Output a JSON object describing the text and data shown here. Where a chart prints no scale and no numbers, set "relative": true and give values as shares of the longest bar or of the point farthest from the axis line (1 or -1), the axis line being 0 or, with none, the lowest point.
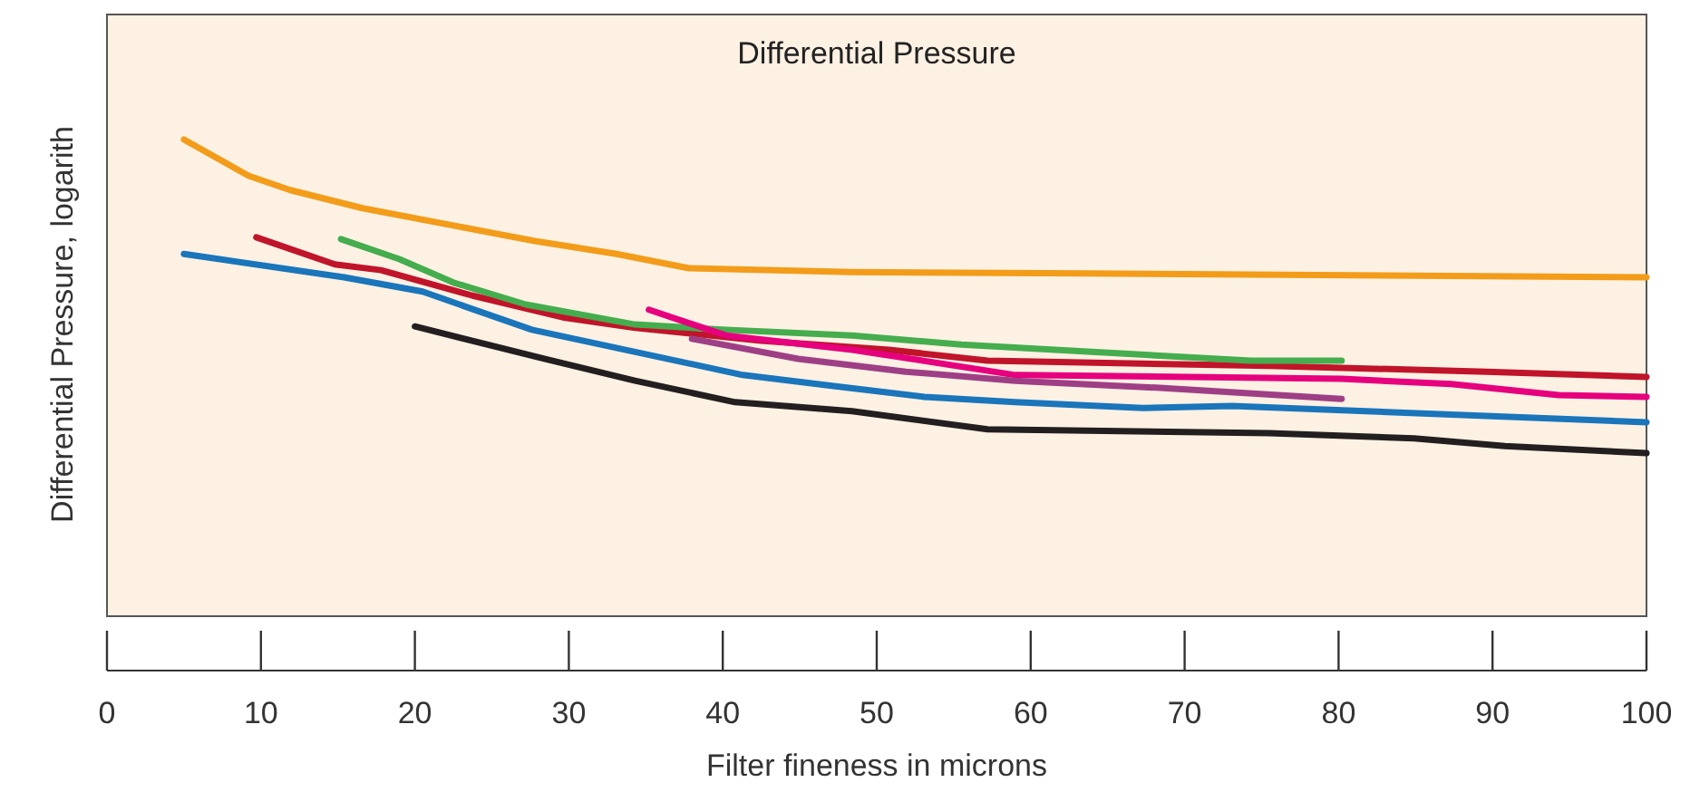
{
  "chart_data": {
    "type": "line",
    "title": "Differential Pressure",
    "xlabel": "Filter fineness in microns",
    "ylabel": "Differential Pressure, logarith",
    "relative": true,
    "xlim": [
      0,
      100
    ],
    "xticks": [
      0,
      10,
      20,
      30,
      40,
      50,
      60,
      70,
      80,
      90,
      100
    ],
    "grid": false,
    "marker": "none",
    "line_style": "solid",
    "series": [
      {
        "color": "#f39c1a",
        "x": [
          5,
          9.2,
          11.9,
          16.6,
          27.8,
          33.1,
          37.8,
          48.4,
          63.7,
          100
        ],
        "values": [
          1,
          0.924,
          0.894,
          0.856,
          0.787,
          0.76,
          0.73,
          0.722,
          0.719,
          0.711
        ]
      },
      {
        "color": "#1a75bb",
        "x": [
          5,
          15.4,
          20.5,
          27.6,
          41.3,
          47.2,
          53.1,
          59,
          67.3,
          73.1,
          100
        ],
        "values": [
          0.76,
          0.711,
          0.681,
          0.601,
          0.506,
          0.483,
          0.46,
          0.449,
          0.437,
          0.441,
          0.407
        ]
      },
      {
        "color": "#c0142a",
        "x": [
          9.7,
          14.8,
          17.8,
          23.7,
          29.6,
          34.3,
          42.5,
          50.8,
          57.2,
          75.5,
          89.6,
          100
        ],
        "values": [
          0.795,
          0.738,
          0.726,
          0.673,
          0.627,
          0.605,
          0.578,
          0.559,
          0.536,
          0.525,
          0.513,
          0.502
        ]
      },
      {
        "color": "#45ad4e",
        "x": [
          15.2,
          19,
          22.5,
          27.2,
          34.3,
          40.2,
          48.4,
          55.5,
          63.7,
          74.3,
          80.2
        ],
        "values": [
          0.791,
          0.749,
          0.7,
          0.654,
          0.612,
          0.601,
          0.589,
          0.57,
          0.555,
          0.536,
          0.536
        ]
      },
      {
        "color": "#e6007e",
        "x": [
          35.2,
          40.2,
          48.4,
          59,
          80.2,
          87.3,
          94.3,
          100
        ],
        "values": [
          0.643,
          0.589,
          0.559,
          0.506,
          0.498,
          0.487,
          0.464,
          0.46
        ]
      },
      {
        "color": "#9e3f86",
        "x": [
          38,
          44.9,
          51.9,
          59,
          68.4,
          80.2
        ],
        "values": [
          0.582,
          0.54,
          0.513,
          0.494,
          0.479,
          0.456
        ]
      },
      {
        "color": "#231f20",
        "x": [
          20,
          28.4,
          34.3,
          40.8,
          48.4,
          57.2,
          75.5,
          84.9,
          90.8,
          100
        ],
        "values": [
          0.608,
          0.54,
          0.494,
          0.449,
          0.43,
          0.392,
          0.384,
          0.373,
          0.357,
          0.342
        ]
      }
    ]
  }
}
